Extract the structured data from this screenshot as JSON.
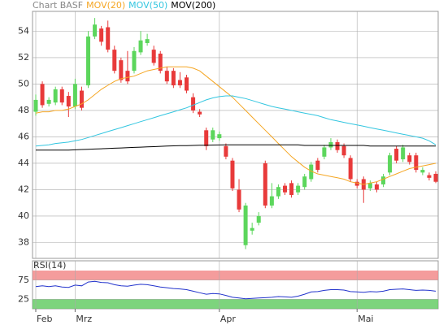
{
  "chart_data": [
    {
      "type": "candlestick",
      "title": "Chart BASF",
      "categories": [
        "Feb",
        null,
        null,
        null,
        null,
        null,
        "Mrz",
        null,
        null,
        null,
        null,
        null,
        null,
        null,
        null,
        null,
        null,
        null,
        null,
        null,
        null,
        null,
        null,
        null,
        null,
        null,
        null,
        null,
        "Apr",
        null,
        null,
        null,
        null,
        null,
        null,
        null,
        null,
        null,
        null,
        null,
        null,
        null,
        null,
        null,
        null,
        null,
        null,
        null,
        null,
        "Mai",
        null,
        null,
        null,
        null,
        null,
        null,
        null,
        null,
        null,
        null,
        null,
        null
      ],
      "open": [
        47.9,
        50.0,
        48.5,
        48.6,
        49.6,
        49.1,
        48.3,
        49.5,
        49.9,
        53.6,
        54.2,
        54.3,
        52.6,
        51.8,
        51.0,
        51.0,
        52.4,
        53.1,
        52.6,
        52.3,
        51.0,
        51.0,
        50.3,
        50.5,
        49.0,
        47.9,
        46.5,
        45.8,
        45.9,
        45.3,
        44.2,
        42.0,
        37.8,
        38.9,
        39.5,
        44.0,
        40.8,
        41.5,
        42.3,
        42.5,
        41.8,
        42.2,
        42.8,
        44.2,
        44.5,
        45.2,
        45.6,
        45.3,
        44.4,
        42.6,
        42.8,
        42.1,
        42.4,
        42.4,
        43.3,
        45.1,
        44.3,
        44.6,
        44.6,
        43.3,
        43.1,
        43.2
      ],
      "high": [
        49.2,
        50.2,
        49.0,
        49.8,
        49.8,
        49.4,
        50.4,
        49.8,
        54.0,
        55.0,
        54.4,
        54.8,
        52.9,
        52.0,
        52.5,
        52.8,
        54.0,
        53.8,
        52.9,
        52.5,
        51.3,
        51.2,
        50.9,
        50.7,
        49.3,
        48.1,
        46.7,
        46.7,
        46.4,
        45.5,
        44.4,
        42.8,
        41.0,
        39.5,
        40.3,
        44.2,
        42.5,
        42.4,
        42.5,
        42.7,
        42.5,
        43.2,
        44.1,
        44.4,
        45.4,
        45.9,
        45.8,
        45.5,
        44.6,
        42.8,
        43.0,
        42.7,
        42.6,
        43.2,
        44.8,
        45.3,
        45.4,
        44.8,
        44.8,
        43.7,
        43.3,
        43.4
      ],
      "low": [
        47.6,
        48.2,
        48.3,
        48.4,
        48.4,
        47.5,
        48.1,
        48.0,
        49.7,
        53.4,
        52.9,
        52.4,
        50.8,
        50.1,
        50.0,
        50.8,
        52.2,
        52.9,
        51.4,
        50.8,
        50.0,
        49.7,
        49.7,
        49.3,
        47.8,
        47.5,
        45.0,
        45.6,
        45.7,
        44.3,
        41.9,
        40.3,
        37.5,
        38.6,
        39.3,
        40.6,
        40.6,
        41.3,
        41.6,
        41.4,
        41.6,
        42.0,
        42.6,
        43.3,
        44.3,
        45.0,
        44.8,
        44.4,
        42.6,
        42.1,
        41.0,
        41.9,
        41.8,
        42.2,
        43.1,
        44.0,
        44.1,
        43.9,
        43.3,
        43.1,
        42.7,
        42.5
      ],
      "close": [
        48.8,
        48.4,
        48.8,
        49.6,
        48.6,
        48.3,
        50.0,
        48.2,
        53.6,
        54.5,
        53.2,
        52.6,
        51.0,
        50.3,
        50.2,
        52.5,
        53.3,
        53.4,
        51.6,
        51.0,
        50.2,
        49.9,
        49.9,
        49.5,
        48.0,
        47.7,
        45.3,
        46.5,
        46.2,
        44.5,
        42.1,
        40.5,
        40.8,
        39.1,
        40.0,
        40.8,
        41.5,
        42.2,
        41.8,
        41.6,
        42.3,
        43.0,
        43.9,
        43.5,
        45.2,
        45.6,
        45.0,
        44.6,
        42.8,
        42.3,
        42.0,
        42.5,
        42.0,
        43.0,
        44.6,
        44.2,
        45.2,
        44.1,
        43.5,
        43.5,
        42.9,
        42.6
      ],
      "up_color": "#5cd65c",
      "down_color": "#e83a3a",
      "series": [
        {
          "name": "MOV(20)",
          "color": "#f5a623",
          "values": [
            47.8,
            47.9,
            47.9,
            48.0,
            48.0,
            48.1,
            48.3,
            48.5,
            48.8,
            49.2,
            49.6,
            49.9,
            50.2,
            50.4,
            50.5,
            50.6,
            50.8,
            51.0,
            51.1,
            51.2,
            51.3,
            51.3,
            51.3,
            51.3,
            51.2,
            51.0,
            50.6,
            50.2,
            49.8,
            49.4,
            49.0,
            48.5,
            48.0,
            47.5,
            47.0,
            46.5,
            46.0,
            45.5,
            45.0,
            44.5,
            44.1,
            43.7,
            43.4,
            43.2,
            43.1,
            43.0,
            42.9,
            42.8,
            42.6,
            42.5,
            42.4,
            42.5,
            42.6,
            42.8,
            43.0,
            43.2,
            43.4,
            43.6,
            43.7,
            43.8,
            43.9,
            44.0
          ]
        },
        {
          "name": "MOV(50)",
          "color": "#33c6e0",
          "values": [
            45.3,
            45.35,
            45.4,
            45.5,
            45.55,
            45.6,
            45.7,
            45.8,
            45.95,
            46.1,
            46.25,
            46.4,
            46.55,
            46.7,
            46.85,
            47.0,
            47.15,
            47.3,
            47.45,
            47.6,
            47.75,
            47.9,
            48.05,
            48.2,
            48.4,
            48.6,
            48.8,
            48.95,
            49.05,
            49.1,
            49.1,
            49.0,
            48.9,
            48.75,
            48.6,
            48.45,
            48.3,
            48.2,
            48.1,
            48.0,
            47.9,
            47.8,
            47.7,
            47.6,
            47.45,
            47.3,
            47.2,
            47.1,
            47.0,
            46.9,
            46.8,
            46.7,
            46.6,
            46.5,
            46.4,
            46.3,
            46.2,
            46.1,
            46.0,
            45.9,
            45.7,
            45.4
          ]
        },
        {
          "name": "MOV(200)",
          "color": "#000000",
          "values": [
            45.0,
            45.0,
            45.0,
            45.0,
            45.0,
            45.0,
            45.02,
            45.04,
            45.06,
            45.08,
            45.1,
            45.12,
            45.14,
            45.16,
            45.18,
            45.2,
            45.22,
            45.24,
            45.26,
            45.28,
            45.3,
            45.32,
            45.33,
            45.34,
            45.35,
            45.36,
            45.37,
            45.38,
            45.39,
            45.4,
            45.4,
            45.4,
            45.4,
            45.4,
            45.4,
            45.4,
            45.4,
            45.4,
            45.4,
            45.4,
            45.4,
            45.35,
            45.35,
            45.35,
            45.35,
            45.35,
            45.35,
            45.35,
            45.35,
            45.35,
            45.35,
            45.3,
            45.3,
            45.3,
            45.3,
            45.3,
            45.3,
            45.3,
            45.3,
            45.3,
            45.3,
            45.3
          ]
        }
      ],
      "ylim": [
        36.8,
        55.5
      ],
      "yticks": [
        38,
        40,
        42,
        44,
        46,
        48,
        50,
        52,
        54
      ],
      "grid": true
    },
    {
      "type": "line",
      "title": "RSI(14)",
      "series": [
        {
          "color": "#2233cc",
          "values": [
            58,
            60,
            58,
            60,
            57,
            56,
            62,
            60,
            70,
            72,
            69,
            68,
            63,
            60,
            59,
            62,
            64,
            63,
            60,
            57,
            55,
            53,
            52,
            50,
            46,
            42,
            38,
            40,
            39,
            35,
            30,
            28,
            26,
            27,
            28,
            29,
            30,
            32,
            31,
            30,
            33,
            38,
            44,
            45,
            48,
            50,
            50,
            49,
            45,
            44,
            43,
            45,
            44,
            46,
            50,
            51,
            52,
            50,
            48,
            49,
            48,
            46
          ]
        }
      ],
      "bands": [
        {
          "from": 75,
          "to": 100,
          "color": "#f28b8b"
        },
        {
          "from": 0,
          "to": 25,
          "color": "#66cc66"
        }
      ],
      "ylim": [
        0,
        100
      ],
      "yticks": [
        25,
        75
      ],
      "grid": true
    }
  ]
}
